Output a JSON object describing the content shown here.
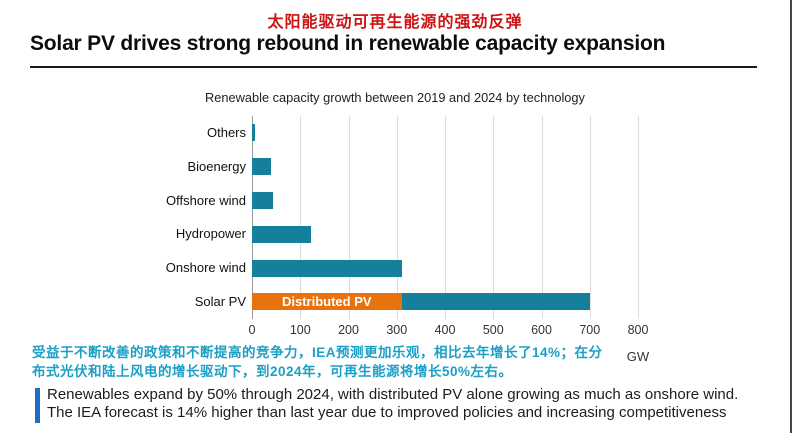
{
  "page": {
    "zh_title": "太阳能驱动可再生能源的强劲反弹",
    "en_title": "Solar PV drives strong rebound in renewable capacity expansion"
  },
  "chart_data": {
    "type": "bar",
    "orientation": "horizontal",
    "title": "Renewable capacity growth between 2019 and 2024 by technology",
    "unit": "GW",
    "xlim": [
      0,
      800
    ],
    "x_ticks": [
      0,
      100,
      200,
      300,
      400,
      500,
      600,
      700,
      800
    ],
    "grid": true,
    "legend_position": "none",
    "categories": [
      "Others",
      "Bioenergy",
      "Offshore wind",
      "Hydropower",
      "Onshore wind",
      "Solar PV"
    ],
    "bars": [
      {
        "category": "Others",
        "total": 6,
        "segments": [
          {
            "value": 6,
            "color_key": "teal"
          }
        ]
      },
      {
        "category": "Bioenergy",
        "total": 40,
        "segments": [
          {
            "value": 40,
            "color_key": "teal"
          }
        ]
      },
      {
        "category": "Offshore wind",
        "total": 43,
        "segments": [
          {
            "value": 43,
            "color_key": "teal"
          }
        ]
      },
      {
        "category": "Hydropower",
        "total": 122,
        "segments": [
          {
            "value": 122,
            "color_key": "teal"
          }
        ]
      },
      {
        "category": "Onshore wind",
        "total": 310,
        "segments": [
          {
            "value": 310,
            "color_key": "teal"
          }
        ]
      },
      {
        "category": "Solar PV",
        "total": 700,
        "segments": [
          {
            "value": 310,
            "color_key": "orange",
            "label": "Distributed PV"
          },
          {
            "value": 390,
            "color_key": "teal"
          }
        ]
      }
    ]
  },
  "colors": {
    "teal": "#15809C",
    "orange": "#E8730E",
    "red_title": "#CC1414",
    "zh_caption": "#1B9FC6",
    "accent_blue": "#1E6BC8"
  },
  "captions": {
    "zh_line1": "受益于不断改善的政策和不断提高的竞争力，IEA预测更加乐观，相比去年增长了14%；在分",
    "zh_line2": "布式光伏和陆上风电的增长驱动下，到2024年，可再生能源将增长50%左右。",
    "en_line1": "Renewables expand by 50% through 2024, with distributed PV alone growing as much as onshore wind.",
    "en_line2": "The IEA forecast is 14% higher than last year due to improved policies and increasing competitiveness"
  }
}
